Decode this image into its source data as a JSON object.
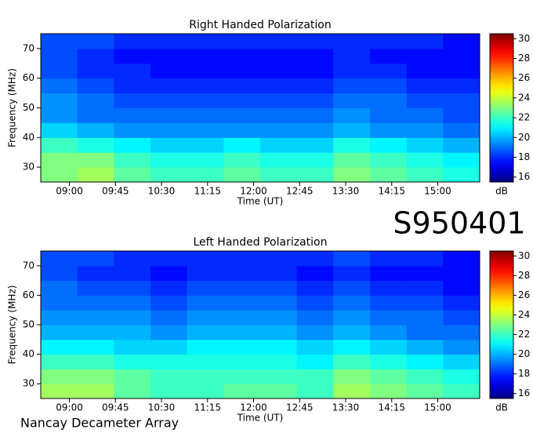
{
  "annotations": {
    "id": "S950401",
    "footer": "Nancay Decameter Array"
  },
  "chart_data": [
    {
      "type": "heatmap",
      "title": "Right Handed Polarization",
      "xlabel": "Time (UT)",
      "ylabel": "Frequency (MHz)",
      "xlim": [
        512,
        941
      ],
      "xticks": [
        {
          "value": 540,
          "label": "09:00"
        },
        {
          "value": 585,
          "label": "09:45"
        },
        {
          "value": 630,
          "label": "10:30"
        },
        {
          "value": 675,
          "label": "11:15"
        },
        {
          "value": 720,
          "label": "12:00"
        },
        {
          "value": 765,
          "label": "12:45"
        },
        {
          "value": 810,
          "label": "13:30"
        },
        {
          "value": 855,
          "label": "14:15"
        },
        {
          "value": 900,
          "label": "15:00"
        }
      ],
      "ylim": [
        25,
        75
      ],
      "yticks": [
        30,
        40,
        50,
        60,
        70
      ],
      "colormap": "jet",
      "colorbar": {
        "label": "dB",
        "lim": [
          15.5,
          30.5
        ],
        "ticks": [
          16,
          18,
          20,
          22,
          24,
          26,
          28,
          30
        ]
      },
      "z": [
        [
          23,
          23.5,
          22.5,
          22,
          22,
          22.5,
          22,
          22,
          23,
          22.5,
          22,
          21.5
        ],
        [
          23,
          23,
          22,
          21.5,
          21.5,
          22,
          21.5,
          21.5,
          22.5,
          22,
          21.5,
          21
        ],
        [
          22,
          21.5,
          21,
          20.5,
          20.5,
          21,
          20.5,
          20.5,
          21.5,
          21,
          20.5,
          20
        ],
        [
          20.5,
          20,
          19.5,
          19.5,
          19.5,
          19.5,
          19.5,
          19.5,
          20,
          19.5,
          19.5,
          19
        ],
        [
          19.5,
          19,
          19,
          19,
          19,
          19,
          19,
          19,
          19.5,
          19,
          19,
          18.5
        ],
        [
          19.5,
          19,
          18.5,
          18.5,
          18.5,
          18.5,
          18.5,
          18.5,
          19,
          19,
          18.5,
          18.5
        ],
        [
          19,
          18.5,
          18,
          18,
          18,
          18,
          18,
          18,
          18.5,
          18.5,
          18,
          18
        ],
        [
          18.5,
          18,
          18,
          17.5,
          17.5,
          17.5,
          17.5,
          17.5,
          18,
          18,
          17.5,
          17.5
        ],
        [
          18.5,
          18,
          17.5,
          17.5,
          17.5,
          17.5,
          17.5,
          17.5,
          18,
          17.5,
          17.5,
          17.5
        ],
        [
          18.5,
          18.5,
          18,
          18,
          18,
          18,
          18,
          18,
          18,
          18,
          18,
          17.5
        ]
      ]
    },
    {
      "type": "heatmap",
      "title": "Left Handed Polarization",
      "xlabel": "Time (UT)",
      "ylabel": "Frequency (MHz)",
      "xlim": [
        512,
        941
      ],
      "xticks": [
        {
          "value": 540,
          "label": "09:00"
        },
        {
          "value": 585,
          "label": "09:45"
        },
        {
          "value": 630,
          "label": "10:30"
        },
        {
          "value": 675,
          "label": "11:15"
        },
        {
          "value": 720,
          "label": "12:00"
        },
        {
          "value": 765,
          "label": "12:45"
        },
        {
          "value": 810,
          "label": "13:30"
        },
        {
          "value": 855,
          "label": "14:15"
        },
        {
          "value": 900,
          "label": "15:00"
        }
      ],
      "ylim": [
        25,
        75
      ],
      "yticks": [
        30,
        40,
        50,
        60,
        70
      ],
      "colormap": "jet",
      "colorbar": {
        "label": "dB",
        "lim": [
          15.5,
          30.5
        ],
        "ticks": [
          16,
          18,
          20,
          22,
          24,
          26,
          28,
          30
        ]
      },
      "z": [
        [
          23.5,
          23.5,
          22.5,
          22,
          22,
          22.5,
          22.5,
          22,
          23.5,
          23,
          22.5,
          22
        ],
        [
          23,
          23,
          22.5,
          22,
          22,
          22,
          22,
          22,
          23,
          22.5,
          22,
          21.5
        ],
        [
          22,
          22,
          21.5,
          21.5,
          21.5,
          21.5,
          21.5,
          21,
          22,
          21.5,
          21,
          20.5
        ],
        [
          21,
          21,
          20.5,
          20.5,
          21,
          21,
          21,
          20.5,
          21,
          20.5,
          20,
          19.5
        ],
        [
          20,
          20,
          20,
          19.5,
          20,
          20,
          20,
          19.5,
          20,
          19.5,
          19,
          19
        ],
        [
          19.5,
          19.5,
          19.5,
          19,
          19.5,
          19.5,
          19.5,
          19,
          19.5,
          19,
          19,
          18.5
        ],
        [
          19,
          19,
          19,
          18.5,
          19,
          19,
          19,
          18.5,
          19,
          18.5,
          18.5,
          18
        ],
        [
          19,
          18.5,
          18.5,
          18,
          18.5,
          18.5,
          18.5,
          18,
          18.5,
          18,
          18,
          17.5
        ],
        [
          18.5,
          18,
          18,
          17.5,
          18,
          18,
          18,
          17.5,
          18,
          17.5,
          17.5,
          17.5
        ],
        [
          18.5,
          18.5,
          18,
          18,
          18,
          18,
          18,
          18,
          18.5,
          18,
          18,
          17.5
        ]
      ]
    }
  ]
}
